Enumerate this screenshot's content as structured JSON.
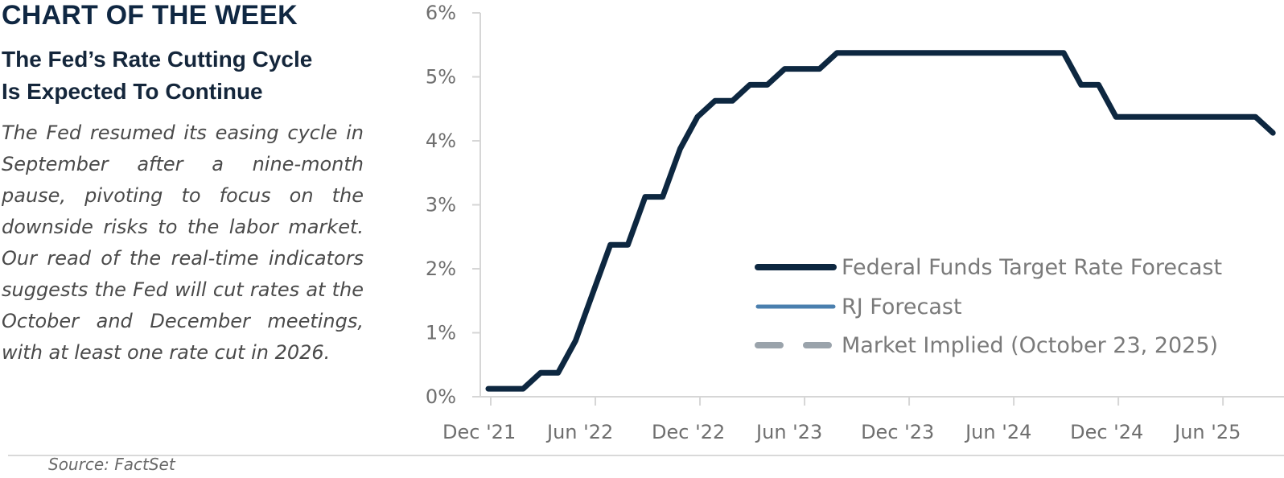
{
  "eyebrow": "CHART OF THE WEEK",
  "headline": {
    "line1": "The Fed’s Rate Cutting Cycle",
    "line2": "Is Expected To Continue"
  },
  "body": "The Fed resumed its easing cycle in September after a nine-month pause, pivoting to focus on the downside risks to the labor market. Our read of the real-time indicators suggests the Fed will cut rates at the October and December meetings, with at least one rate cut in 2026.",
  "source": "Source: FactSet",
  "colors": {
    "fed_funds": "#0d2740",
    "rj_forecast": "#4a7fae",
    "market_implied": "#9aa3ab",
    "axis": "#d6d6d6",
    "tick_text": "#6f6f6f"
  },
  "chart_data": {
    "type": "line",
    "xlabel": "",
    "ylabel": "",
    "xlim": [
      "2021-12",
      "2025-08"
    ],
    "ylim": [
      0,
      6
    ],
    "grid": false,
    "y_ticks": [
      0,
      1,
      2,
      3,
      4,
      5,
      6
    ],
    "y_tick_labels": [
      "0%",
      "1%",
      "2%",
      "3%",
      "4%",
      "5%",
      "6%"
    ],
    "x_ticks": [
      "2021-12",
      "2022-06",
      "2022-12",
      "2023-06",
      "2023-12",
      "2024-06",
      "2024-12",
      "2025-06"
    ],
    "x_tick_labels": [
      "Dec '21",
      "Jun '22",
      "Dec '22",
      "Jun '23",
      "Dec '23",
      "Jun '24",
      "Dec '24",
      "Jun '25"
    ],
    "legend_position": "bottom-right",
    "series": [
      {
        "name": "Federal Funds Target Rate Forecast",
        "style": "solid",
        "color": "#0d2740",
        "points": [
          {
            "x": "2021-12",
            "y": 0.125
          },
          {
            "x": "2022-02",
            "y": 0.125
          },
          {
            "x": "2022-03",
            "y": 0.375
          },
          {
            "x": "2022-04",
            "y": 0.375
          },
          {
            "x": "2022-05",
            "y": 0.875
          },
          {
            "x": "2022-06",
            "y": 1.625
          },
          {
            "x": "2022-07",
            "y": 2.375
          },
          {
            "x": "2022-08",
            "y": 2.375
          },
          {
            "x": "2022-09",
            "y": 3.125
          },
          {
            "x": "2022-10",
            "y": 3.125
          },
          {
            "x": "2022-11",
            "y": 3.875
          },
          {
            "x": "2022-12",
            "y": 4.375
          },
          {
            "x": "2023-01",
            "y": 4.625
          },
          {
            "x": "2023-02",
            "y": 4.625
          },
          {
            "x": "2023-03",
            "y": 4.875
          },
          {
            "x": "2023-04",
            "y": 4.875
          },
          {
            "x": "2023-05",
            "y": 5.125
          },
          {
            "x": "2023-06",
            "y": 5.125
          },
          {
            "x": "2023-07",
            "y": 5.125
          },
          {
            "x": "2023-08",
            "y": 5.375
          },
          {
            "x": "2024-09",
            "y": 5.375
          },
          {
            "x": "2024-10",
            "y": 4.875
          },
          {
            "x": "2024-11",
            "y": 4.875
          },
          {
            "x": "2024-12",
            "y": 4.375
          },
          {
            "x": "2025-08",
            "y": 4.375
          },
          {
            "x": "2025-09",
            "y": 4.125
          }
        ]
      },
      {
        "name": "RJ Forecast",
        "style": "solid",
        "color": "#4a7fae",
        "points": []
      },
      {
        "name": "Market Implied (October 23, 2025)",
        "style": "dashed",
        "color": "#9aa3ab",
        "points": []
      }
    ]
  }
}
